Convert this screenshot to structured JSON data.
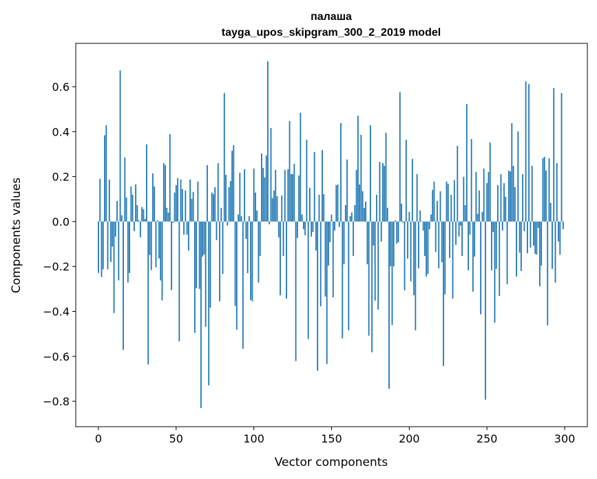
{
  "chart_data": {
    "type": "bar",
    "title_line1": "палаша",
    "title_line2": "tayga_upos_skipgram_300_2_2019 model",
    "xlabel": "Vector components",
    "ylabel": "Components values",
    "xlim": [
      -14.6,
      314.6
    ],
    "ylim": [
      -0.913,
      0.793
    ],
    "xticks": [
      0,
      50,
      100,
      150,
      200,
      250,
      300
    ],
    "xtick_labels": [
      "0",
      "50",
      "100",
      "150",
      "200",
      "250",
      "300"
    ],
    "yticks": [
      -0.8,
      -0.6,
      -0.4,
      -0.2,
      0.0,
      0.2,
      0.4,
      0.6
    ],
    "ytick_labels": [
      "−0.8",
      "−0.6",
      "−0.4",
      "−0.2",
      "0.0",
      "0.2",
      "0.4",
      "0.6"
    ],
    "grid": false,
    "bar_color": "#1f77b4",
    "values": [
      -0.229,
      0.19,
      -0.247,
      -0.213,
      0.384,
      0.429,
      -0.213,
      0.187,
      -0.18,
      -0.112,
      -0.407,
      -0.067,
      0.092,
      -0.262,
      0.673,
      0.028,
      -0.571,
      0.285,
      0.107,
      -0.271,
      -0.229,
      0.156,
      0.119,
      -0.043,
      0.165,
      0.073,
      0.006,
      -0.07,
      0.064,
      0.055,
      0.012,
      0.343,
      -0.636,
      -0.149,
      -0.216,
      0.214,
      0.156,
      -0.204,
      0.006,
      -0.164,
      -0.262,
      -0.351,
      0.26,
      0.251,
      0.061,
      0.04,
      0.389,
      -0.305,
      -0.006,
      0.129,
      0.162,
      0.193,
      -0.533,
      0.187,
      0.144,
      -0.058,
      0.138,
      -0.058,
      -0.129,
      0.187,
      0.101,
      0.132,
      -0.496,
      -0.297,
      0.178,
      -0.3,
      -0.83,
      -0.156,
      -0.147,
      -0.468,
      0.251,
      -0.729,
      -0.383,
      0.129,
      0.122,
      0.153,
      -0.083,
      0.26,
      -0.355,
      0.061,
      -0.233,
      0.572,
      0.208,
      -0.018,
      0.153,
      0.18,
      0.315,
      0.34,
      -0.376,
      -0.481,
      0.031,
      0.217,
      0.024,
      -0.566,
      0.233,
      -0.077,
      -0.23,
      0.024,
      -0.349,
      -0.355,
      0.236,
      0.129,
      0.049,
      -0.272,
      -0.153,
      0.303,
      0.239,
      0.196,
      0.294,
      0.713,
      -0.012,
      0.416,
      0.104,
      0.138,
      0.23,
      0.113,
      -0.07,
      -0.328,
      0.116,
      -0.153,
      0.23,
      -0.343,
      0.233,
      0.447,
      0.211,
      0.211,
      0.257,
      -0.621,
      -0.073,
      0.205,
      0.484,
      0.031,
      -0.034,
      -0.061,
      0.364,
      -0.523,
      0.15,
      -0.067,
      -0.046,
      0.309,
      -0.129,
      -0.664,
      0.119,
      -0.377,
      0.318,
      0.122,
      -0.334,
      -0.634,
      -0.196,
      -0.092,
      0.031,
      -0.337,
      -0.04,
      0.162,
      0.165,
      -0.024,
      0.438,
      -0.52,
      -0.19,
      0.073,
      0.276,
      -0.484,
      0.024,
      0.04,
      -0.153,
      0.073,
      0.23,
      0.471,
      0.165,
      0.386,
      0.135,
      0.061,
      0.089,
      -0.19,
      -0.508,
      0.429,
      -0.582,
      -0.107,
      -0.352,
      0.119,
      -0.392,
      0.266,
      -0.089,
      0.26,
      0.248,
      0.395,
      0.061,
      -0.744,
      -0.199,
      -0.461,
      -0.199,
      0.006,
      -0.098,
      -0.092,
      0.576,
      0.08,
      -0.006,
      -0.306,
      0.364,
      -0.165,
      0.043,
      -0.266,
      0.279,
      -0.328,
      -0.484,
      0.211,
      -0.208,
      0.049,
      0.002,
      -0.04,
      -0.153,
      -0.245,
      -0.233,
      -0.034,
      0.031,
      0.141,
      0.178,
      -0.135,
      0.092,
      -0.208,
      0.135,
      -0.181,
      -0.643,
      -0.324,
      0.178,
      0.168,
      -0.162,
      0.119,
      -0.343,
      0.184,
      -0.104,
      0.337,
      -0.067,
      -0.018,
      -0.153,
      0.199,
      0.073,
      0.523,
      -0.217,
      -0.058,
      0.367,
      -0.312,
      -0.156,
      0.22,
      0.034,
      0.138,
      -0.413,
      0.043,
      0.236,
      -0.793,
      0.171,
      0.22,
      0.352,
      -0.217,
      -0.046,
      -0.45,
      -0.211,
      0.162,
      -0.331,
      0.211,
      -0.04,
      0.171,
      0.11,
      -0.279,
      0.227,
      0.223,
      0.438,
      0.248,
      0.153,
      -0.245,
      0.401,
      -0.138,
      -0.22,
      0.211,
      -0.043,
      0.624,
      -0.141,
      0.612,
      -0.116,
      0.248,
      -0.107,
      -0.144,
      -0.147,
      -0.028,
      -0.288,
      -0.196,
      0.282,
      0.288,
      0.227,
      -0.462,
      0.282,
      0.083,
      -0.211,
      0.594,
      -0.272,
      0.26,
      -0.089,
      -0.147,
      0.572,
      -0.034
    ]
  }
}
